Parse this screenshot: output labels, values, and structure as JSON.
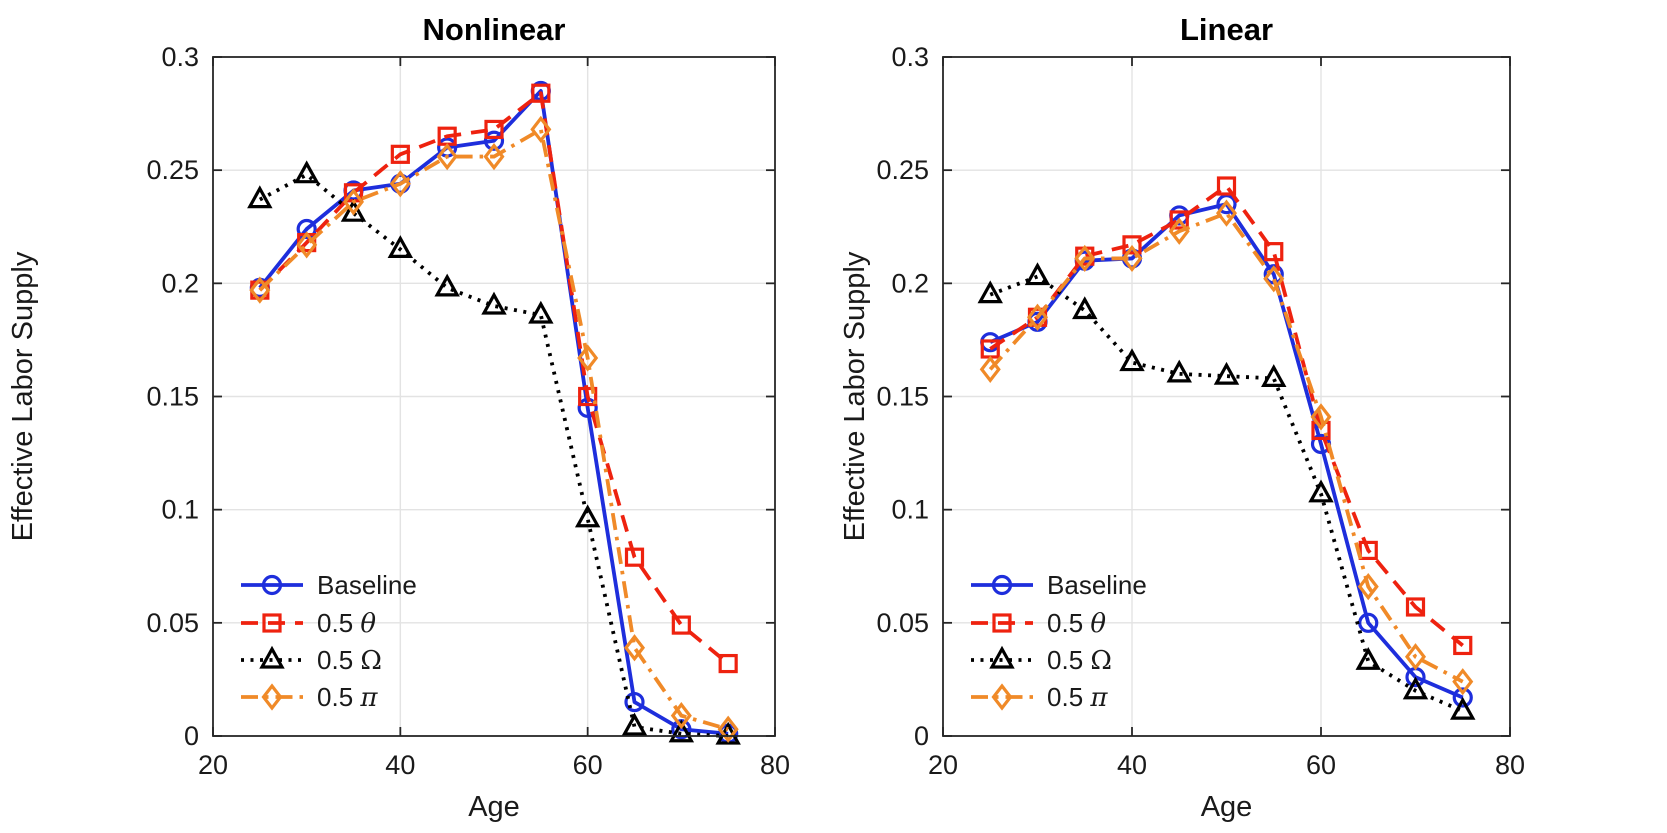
{
  "figure": {
    "background": "#ffffff",
    "grid_color": "#e3e3e3",
    "axis_color": "#262626",
    "text_color": "#1a1a1a"
  },
  "chart_data": [
    {
      "type": "line",
      "title": "Nonlinear",
      "xlabel": "Age",
      "ylabel": "Effective Labor Supply",
      "xlim": [
        20,
        80
      ],
      "ylim": [
        0,
        0.3
      ],
      "xticks": [
        20,
        40,
        60,
        80
      ],
      "xticklabels": [
        "20",
        "40",
        "60",
        "80"
      ],
      "yticks": [
        0,
        0.05,
        0.1,
        0.15,
        0.2,
        0.25,
        0.3
      ],
      "yticklabels": [
        "0",
        "0.05",
        "0.1",
        "0.15",
        "0.2",
        "0.25",
        "0.3"
      ],
      "grid": true,
      "legend_position": "lower-left",
      "x": [
        25,
        30,
        35,
        40,
        45,
        50,
        55,
        60,
        65,
        70,
        75
      ],
      "series": [
        {
          "name": "Baseline",
          "color": "#1e2edc",
          "line": "solid",
          "marker": "circle",
          "values": [
            0.198,
            0.224,
            0.241,
            0.244,
            0.26,
            0.263,
            0.285,
            0.145,
            0.015,
            0.003,
            0.001
          ]
        },
        {
          "name": "0.5 θ",
          "color": "#ee220f",
          "line": "dashed",
          "marker": "square",
          "values": [
            0.197,
            0.218,
            0.24,
            0.257,
            0.265,
            0.268,
            0.284,
            0.15,
            0.079,
            0.049,
            0.032
          ]
        },
        {
          "name": "0.5 Ω",
          "color": "#000000",
          "line": "dotted",
          "marker": "triangle",
          "values": [
            0.237,
            0.248,
            0.231,
            0.215,
            0.198,
            0.19,
            0.186,
            0.096,
            0.004,
            0.001,
            0.0
          ]
        },
        {
          "name": "0.5 π",
          "color": "#f08a28",
          "line": "dashdot",
          "marker": "diamond",
          "values": [
            0.197,
            0.217,
            0.236,
            0.244,
            0.256,
            0.256,
            0.268,
            0.167,
            0.039,
            0.009,
            0.003
          ]
        }
      ]
    },
    {
      "type": "line",
      "title": "Linear",
      "xlabel": "Age",
      "ylabel": "Effective Labor Supply",
      "xlim": [
        20,
        80
      ],
      "ylim": [
        0,
        0.3
      ],
      "xticks": [
        20,
        40,
        60,
        80
      ],
      "xticklabels": [
        "20",
        "40",
        "60",
        "80"
      ],
      "yticks": [
        0,
        0.05,
        0.1,
        0.15,
        0.2,
        0.25,
        0.3
      ],
      "yticklabels": [
        "0",
        "0.05",
        "0.1",
        "0.15",
        "0.2",
        "0.25",
        "0.3"
      ],
      "grid": true,
      "legend_position": "lower-left",
      "x": [
        25,
        30,
        35,
        40,
        45,
        50,
        55,
        60,
        65,
        70,
        75
      ],
      "series": [
        {
          "name": "Baseline",
          "color": "#1e2edc",
          "line": "solid",
          "marker": "circle",
          "values": [
            0.174,
            0.183,
            0.21,
            0.211,
            0.23,
            0.235,
            0.204,
            0.129,
            0.05,
            0.026,
            0.017
          ]
        },
        {
          "name": "0.5 θ",
          "color": "#ee220f",
          "line": "dashed",
          "marker": "square",
          "values": [
            0.171,
            0.185,
            0.212,
            0.217,
            0.228,
            0.243,
            0.214,
            0.135,
            0.082,
            0.057,
            0.04
          ]
        },
        {
          "name": "0.5 Ω",
          "color": "#000000",
          "line": "dotted",
          "marker": "triangle",
          "values": [
            0.195,
            0.203,
            0.188,
            0.165,
            0.16,
            0.159,
            0.158,
            0.107,
            0.033,
            0.02,
            0.011
          ]
        },
        {
          "name": "0.5 π",
          "color": "#f08a28",
          "line": "dashdot",
          "marker": "diamond",
          "values": [
            0.162,
            0.185,
            0.211,
            0.211,
            0.223,
            0.231,
            0.202,
            0.141,
            0.066,
            0.035,
            0.024
          ]
        }
      ]
    }
  ]
}
